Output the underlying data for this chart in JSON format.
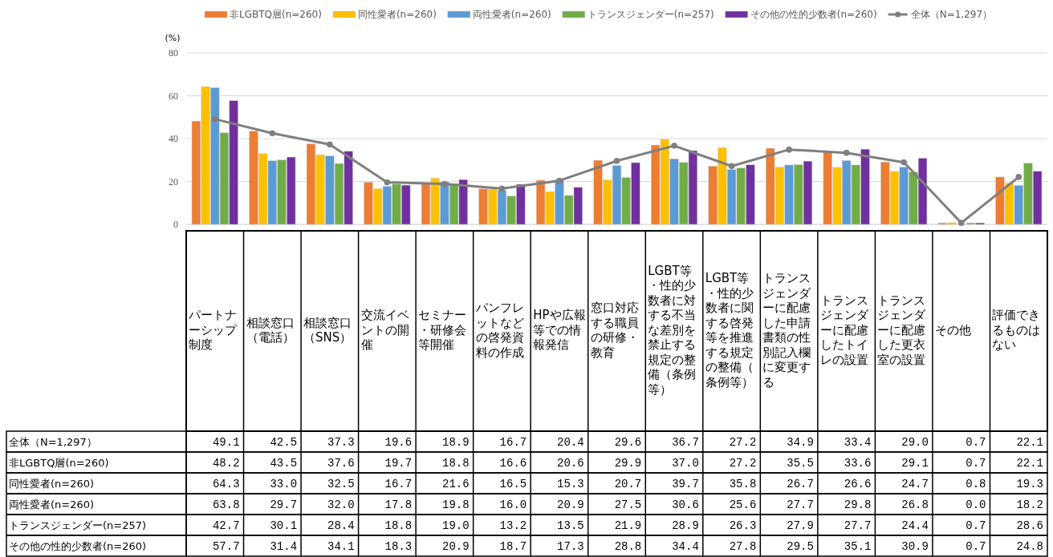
{
  "chart_data": {
    "type": "bar",
    "ylabel": "(%)",
    "categories": [
      "パートナーシップ制度",
      "相談窓口（電話）",
      "相談窓口（SNS）",
      "交流イベントの開催",
      "セミナー・研修会等開催",
      "パンフレットなどの啓発資料の作成",
      "HPや広報等での情報発信",
      "窓口対応する職員の研修・教育",
      "LGBT等・性的少数者に対する不当な差別を禁止する規定の整備（条例等）",
      "LGBT等・性的少数者に関する啓発等を推進する規定の整備（条例等）",
      "トランスジェンダーに配慮した申請書類の性別記入欄に変更する",
      "トランスジェンダーに配慮したトイレの設置",
      "トランスジェンダーに配慮した更衣室の設置",
      "その他",
      "評価できるものはない"
    ],
    "series": [
      {
        "name": "全体（N=1,297）",
        "type": "line",
        "color": "#7f7f7f",
        "values": [
          49.1,
          42.5,
          37.3,
          19.6,
          18.9,
          16.7,
          20.4,
          29.6,
          36.7,
          27.2,
          34.9,
          33.4,
          29.0,
          0.7,
          22.1
        ],
        "value_labels": [
          "49.1",
          "42.5",
          "37.3",
          "19.6",
          "18.9",
          "16.7",
          "20.4",
          "29.6",
          "36.7",
          "27.2",
          "34.9",
          "33.4",
          "29.0",
          "0.7",
          "22.1"
        ]
      },
      {
        "name": "非LGBTQ層(n=260)",
        "color": "#ed7d31",
        "values": [
          48.2,
          43.5,
          37.6,
          19.7,
          18.8,
          16.6,
          20.6,
          29.9,
          37.0,
          27.2,
          35.5,
          33.6,
          29.1,
          0.7,
          22.1
        ],
        "value_labels": [
          "48.2",
          "43.5",
          "37.6",
          "19.7",
          "18.8",
          "16.6",
          "20.6",
          "29.9",
          "37.0",
          "27.2",
          "35.5",
          "33.6",
          "29.1",
          "0.7",
          "22.1"
        ]
      },
      {
        "name": "同性愛者(n=260)",
        "color": "#ffc000",
        "values": [
          64.3,
          33.0,
          32.5,
          16.7,
          21.6,
          16.5,
          15.3,
          20.7,
          39.7,
          35.8,
          26.7,
          26.6,
          24.7,
          0.8,
          19.3
        ],
        "value_labels": [
          "64.3",
          "33.0",
          "32.5",
          "16.7",
          "21.6",
          "16.5",
          "15.3",
          "20.7",
          "39.7",
          "35.8",
          "26.7",
          "26.6",
          "24.7",
          "0.8",
          "19.3"
        ]
      },
      {
        "name": "両性愛者(n=260)",
        "color": "#5b9bd5",
        "values": [
          63.8,
          29.7,
          32.0,
          17.8,
          19.8,
          16.0,
          20.9,
          27.5,
          30.6,
          25.6,
          27.7,
          29.8,
          26.8,
          0.0,
          18.2
        ],
        "value_labels": [
          "63.8",
          "29.7",
          "32.0",
          "17.8",
          "19.8",
          "16.0",
          "20.9",
          "27.5",
          "30.6",
          "25.6",
          "27.7",
          "29.8",
          "26.8",
          "0.0",
          "18.2"
        ]
      },
      {
        "name": "トランスジェンダー(n=257)",
        "color": "#70ad47",
        "values": [
          42.7,
          30.1,
          28.4,
          18.8,
          19.0,
          13.2,
          13.5,
          21.9,
          28.9,
          26.3,
          27.9,
          27.7,
          24.4,
          0.7,
          28.6
        ],
        "value_labels": [
          "42.7",
          "30.1",
          "28.4",
          "18.8",
          "19.0",
          "13.2",
          "13.5",
          "21.9",
          "28.9",
          "26.3",
          "27.9",
          "27.7",
          "24.4",
          "0.7",
          "28.6"
        ]
      },
      {
        "name": "その他の性的少数者(n=260)",
        "color": "#7030a0",
        "values": [
          57.7,
          31.4,
          34.1,
          18.3,
          20.9,
          18.7,
          17.3,
          28.8,
          34.4,
          27.8,
          29.5,
          35.1,
          30.9,
          0.7,
          24.8
        ],
        "value_labels": [
          "57.7",
          "31.4",
          "34.1",
          "18.3",
          "20.9",
          "18.7",
          "17.3",
          "28.8",
          "34.4",
          "27.8",
          "29.5",
          "35.1",
          "30.9",
          "0.7",
          "24.8"
        ]
      }
    ],
    "ylim": [
      0,
      80
    ],
    "yticks": [
      0,
      20,
      40,
      60,
      80
    ],
    "grid": "y",
    "legend": "top",
    "marker": "circle"
  }
}
